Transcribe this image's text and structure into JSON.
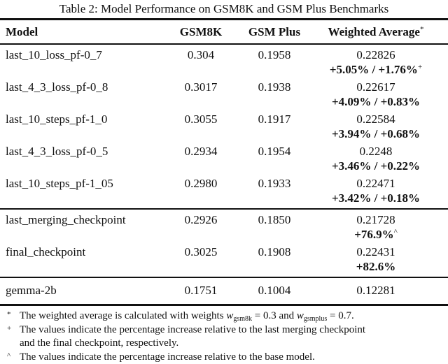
{
  "caption": "Table 2: Model Performance on GSM8K and GSM Plus Benchmarks",
  "colors": {
    "text": "#111111",
    "background": "#ffffff",
    "rule": "#111111"
  },
  "headers": {
    "model": "Model",
    "gsm8k": "GSM8K",
    "gsm_plus": "GSM Plus",
    "weighted_average": "Weighted Average",
    "weighted_average_marker": "*"
  },
  "sections": [
    {
      "rows": [
        {
          "model": "last_10_loss_pf-0_7",
          "gsm8k": "0.304",
          "gsm_plus": "0.1958",
          "weighted": "0.22826",
          "delta": "+5.05% / +1.76%",
          "delta_sup": "+"
        },
        {
          "model": "last_4_3_loss_pf-0_8",
          "gsm8k": "0.3017",
          "gsm_plus": "0.1938",
          "weighted": "0.22617",
          "delta": "+4.09% / +0.83%",
          "delta_sup": ""
        },
        {
          "model": "last_10_steps_pf-1_0",
          "gsm8k": "0.3055",
          "gsm_plus": "0.1917",
          "weighted": "0.22584",
          "delta": "+3.94% / +0.68%",
          "delta_sup": ""
        },
        {
          "model": "last_4_3_loss_pf-0_5",
          "gsm8k": "0.2934",
          "gsm_plus": "0.1954",
          "weighted": "0.2248",
          "delta": "+3.46% / +0.22%",
          "delta_sup": ""
        },
        {
          "model": "last_10_steps_pf-1_05",
          "gsm8k": "0.2980",
          "gsm_plus": "0.1933",
          "weighted": "0.22471",
          "delta": "+3.42% / +0.18%",
          "delta_sup": ""
        }
      ]
    },
    {
      "rows": [
        {
          "model": "last_merging_checkpoint",
          "gsm8k": "0.2926",
          "gsm_plus": "0.1850",
          "weighted": "0.21728",
          "delta": "+76.9%",
          "delta_sup": "^"
        },
        {
          "model": "final_checkpoint",
          "gsm8k": "0.3025",
          "gsm_plus": "0.1908",
          "weighted": "0.22431",
          "delta": "+82.6%",
          "delta_sup": ""
        }
      ]
    },
    {
      "rows": [
        {
          "model": "gemma-2b",
          "gsm8k": "0.1751",
          "gsm_plus": "0.1004",
          "weighted": "0.12281"
        }
      ]
    }
  ],
  "footnotes": {
    "star": {
      "marker": "*",
      "text_1": "The weighted average is calculated with weights ",
      "var_1": "w",
      "sub_1": "gsm8k",
      "text_2": " = 0.3 and ",
      "var_2": "w",
      "sub_2": "gsmplus",
      "text_3": " = 0.7."
    },
    "plus": {
      "marker": "+",
      "line_1": "The values indicate the percentage increase relative to the last merging checkpoint",
      "line_2": "and the final checkpoint, respectively."
    },
    "caret": {
      "marker": "^",
      "text": "The values indicate the percentage increase relative to the base model."
    }
  }
}
